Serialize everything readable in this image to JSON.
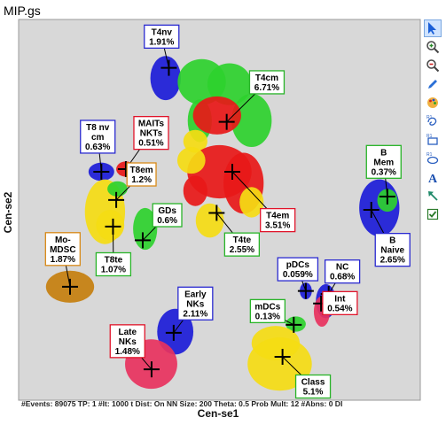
{
  "window": {
    "title": "MIP.gs"
  },
  "toolbar": {
    "items": [
      {
        "name": "pointer-tool-icon",
        "active": true
      },
      {
        "name": "zoom-in-icon",
        "active": false
      },
      {
        "name": "zoom-out-icon",
        "active": false
      },
      {
        "name": "pen-tool-icon",
        "active": false
      },
      {
        "name": "palette-icon",
        "active": false
      },
      {
        "name": "freehand-region-icon",
        "active": false
      },
      {
        "name": "rectangle-region-icon",
        "active": false
      },
      {
        "name": "ellipse-region-icon",
        "active": false
      },
      {
        "name": "text-tool-icon",
        "active": false
      },
      {
        "name": "arrow-tool-icon",
        "active": false
      },
      {
        "name": "checkbox-icon",
        "active": false
      }
    ]
  },
  "colors": {
    "blue": "#1c1cd8",
    "green": "#2ed12e",
    "red": "#e81818",
    "yellow": "#f5dc14",
    "orange": "#c57f0e",
    "pink": "#e8325e",
    "plot_bg": "#d8d8d8",
    "edge_blue": "#2a2ad0",
    "edge_red": "#e0142a",
    "edge_green": "#28b428",
    "edge_orange": "#d88a18"
  },
  "chart_data": {
    "type": "scatter",
    "xlabel": "Cen-se1",
    "ylabel": "Cen-se2",
    "status": "#Events: 89075 TP: 1 #It: 1000 t Dist: On NN Size: 200 Theta: 0.5 Prob Mult: 12 #Abns: 0 DI",
    "grid": false,
    "clusters": [
      {
        "id": "t4nv",
        "label": [
          "T4nv",
          "1.91%"
        ],
        "x": 0.374,
        "y": 0.873,
        "color": "blue",
        "edge": "edge_blue",
        "lx": 0.356,
        "ly": 0.955,
        "blobs": [
          {
            "x": 0.366,
            "y": 0.846,
            "rx": 0.038,
            "ry": 0.058,
            "c": "blue"
          }
        ]
      },
      {
        "id": "t4cm",
        "label": [
          "T4cm",
          "6.71%"
        ],
        "x": 0.518,
        "y": 0.731,
        "color": "green",
        "edge": "edge_green",
        "lx": 0.618,
        "ly": 0.835,
        "blobs": [
          {
            "x": 0.456,
            "y": 0.836,
            "rx": 0.06,
            "ry": 0.06,
            "c": "green"
          },
          {
            "x": 0.525,
            "y": 0.83,
            "rx": 0.055,
            "ry": 0.055,
            "c": "green"
          },
          {
            "x": 0.451,
            "y": 0.734,
            "rx": 0.03,
            "ry": 0.056,
            "c": "green"
          },
          {
            "x": 0.58,
            "y": 0.735,
            "rx": 0.05,
            "ry": 0.07,
            "c": "green"
          },
          {
            "x": 0.494,
            "y": 0.748,
            "rx": 0.06,
            "ry": 0.05,
            "c": "red"
          },
          {
            "x": 0.44,
            "y": 0.68,
            "rx": 0.03,
            "ry": 0.03,
            "c": "yellow"
          }
        ]
      },
      {
        "id": "t8nvcm",
        "label": [
          "T8 nv",
          "cm",
          "0.63%"
        ],
        "x": 0.206,
        "y": 0.6,
        "color": "blue",
        "edge": "edge_blue",
        "lx": 0.197,
        "ly": 0.692,
        "blobs": [
          {
            "x": 0.206,
            "y": 0.6,
            "rx": 0.032,
            "ry": 0.024,
            "c": "blue"
          }
        ]
      },
      {
        "id": "maits",
        "label": [
          "MAITs",
          "NKTs",
          "0.51%"
        ],
        "x": 0.267,
        "y": 0.607,
        "color": "red",
        "edge": "edge_red",
        "lx": 0.33,
        "ly": 0.702,
        "blobs": [
          {
            "x": 0.267,
            "y": 0.607,
            "rx": 0.024,
            "ry": 0.02,
            "c": "red"
          }
        ]
      },
      {
        "id": "t8em",
        "label": [
          "T8em",
          "1.2%"
        ],
        "x": 0.243,
        "y": 0.526,
        "color": "yellow",
        "edge": "edge_orange",
        "lx": 0.306,
        "ly": 0.593,
        "blobs": [
          {
            "x": 0.215,
            "y": 0.495,
            "rx": 0.05,
            "ry": 0.085,
            "c": "yellow"
          },
          {
            "x": 0.246,
            "y": 0.555,
            "rx": 0.025,
            "ry": 0.02,
            "c": "green"
          }
        ]
      },
      {
        "id": "t8te",
        "label": [
          "T8te",
          "1.07%"
        ],
        "x": 0.235,
        "y": 0.456,
        "color": "yellow",
        "edge": "edge_green",
        "lx": 0.236,
        "ly": 0.357,
        "blobs": [
          {
            "x": 0.228,
            "y": 0.46,
            "rx": 0.035,
            "ry": 0.04,
            "c": "yellow"
          }
        ]
      },
      {
        "id": "gds",
        "label": [
          "GDs",
          "0.6%"
        ],
        "x": 0.309,
        "y": 0.42,
        "color": "green",
        "edge": "edge_green",
        "lx": 0.37,
        "ly": 0.486,
        "blobs": [
          {
            "x": 0.315,
            "y": 0.45,
            "rx": 0.03,
            "ry": 0.055,
            "c": "green"
          }
        ]
      },
      {
        "id": "t4em",
        "label": [
          "T4em",
          "3.51%"
        ],
        "x": 0.532,
        "y": 0.6,
        "color": "red",
        "edge": "edge_red",
        "lx": 0.645,
        "ly": 0.473,
        "blobs": [
          {
            "x": 0.5,
            "y": 0.6,
            "rx": 0.08,
            "ry": 0.07,
            "c": "red"
          },
          {
            "x": 0.56,
            "y": 0.57,
            "rx": 0.05,
            "ry": 0.08,
            "c": "red"
          },
          {
            "x": 0.44,
            "y": 0.55,
            "rx": 0.03,
            "ry": 0.04,
            "c": "red"
          },
          {
            "x": 0.43,
            "y": 0.63,
            "rx": 0.035,
            "ry": 0.035,
            "c": "yellow"
          },
          {
            "x": 0.58,
            "y": 0.52,
            "rx": 0.03,
            "ry": 0.04,
            "c": "yellow"
          }
        ]
      },
      {
        "id": "t4te",
        "label": [
          "T4te",
          "2.55%"
        ],
        "x": 0.493,
        "y": 0.492,
        "color": "yellow",
        "edge": "edge_green",
        "lx": 0.556,
        "ly": 0.409,
        "blobs": [
          {
            "x": 0.476,
            "y": 0.472,
            "rx": 0.035,
            "ry": 0.045,
            "c": "yellow"
          }
        ]
      },
      {
        "id": "bmem",
        "label": [
          "B",
          "Mem",
          "0.37%"
        ],
        "x": 0.918,
        "y": 0.535,
        "color": "blue",
        "edge": "edge_green",
        "lx": 0.909,
        "ly": 0.626,
        "blobs": [
          {
            "x": 0.898,
            "y": 0.505,
            "rx": 0.05,
            "ry": 0.075,
            "c": "blue"
          }
        ]
      },
      {
        "id": "bnaive",
        "label": [
          "B",
          "Naive",
          "2.65%"
        ],
        "x": 0.878,
        "y": 0.5,
        "color": "blue",
        "edge": "edge_blue",
        "lx": 0.931,
        "ly": 0.395,
        "blobs": [
          {
            "x": 0.918,
            "y": 0.525,
            "rx": 0.025,
            "ry": 0.03,
            "c": "green"
          }
        ]
      },
      {
        "id": "momdsc",
        "label": [
          "Mo-",
          "MDSC",
          "1.87%"
        ],
        "x": 0.128,
        "y": 0.298,
        "color": "orange",
        "edge": "edge_orange",
        "lx": 0.11,
        "ly": 0.397,
        "blobs": [
          {
            "x": 0.128,
            "y": 0.298,
            "rx": 0.06,
            "ry": 0.042,
            "c": "orange"
          }
        ]
      },
      {
        "id": "pdcs",
        "label": [
          "pDCs",
          "0.059%"
        ],
        "x": 0.715,
        "y": 0.287,
        "color": "blue",
        "edge": "edge_blue",
        "lx": 0.695,
        "ly": 0.344,
        "blobs": [
          {
            "x": 0.715,
            "y": 0.287,
            "rx": 0.015,
            "ry": 0.022,
            "c": "blue"
          }
        ]
      },
      {
        "id": "nc",
        "label": [
          "NC",
          "0.68%"
        ],
        "x": 0.772,
        "y": 0.279,
        "color": "blue",
        "edge": "edge_blue",
        "lx": 0.806,
        "ly": 0.338,
        "blobs": [
          {
            "x": 0.765,
            "y": 0.26,
            "rx": 0.025,
            "ry": 0.045,
            "c": "blue"
          }
        ]
      },
      {
        "id": "int",
        "label": [
          "Int",
          "0.54%"
        ],
        "x": 0.753,
        "y": 0.254,
        "color": "pink",
        "edge": "edge_red",
        "lx": 0.8,
        "ly": 0.255,
        "blobs": [
          {
            "x": 0.755,
            "y": 0.233,
            "rx": 0.02,
            "ry": 0.04,
            "c": "pink"
          }
        ]
      },
      {
        "id": "mdcs",
        "label": [
          "mDCs",
          "0.13%"
        ],
        "x": 0.685,
        "y": 0.198,
        "color": "green",
        "edge": "edge_green",
        "lx": 0.62,
        "ly": 0.234,
        "blobs": [
          {
            "x": 0.69,
            "y": 0.2,
            "rx": 0.025,
            "ry": 0.02,
            "c": "green"
          }
        ]
      },
      {
        "id": "class",
        "label": [
          "Class",
          "5.1%"
        ],
        "x": 0.657,
        "y": 0.114,
        "color": "yellow",
        "edge": "edge_green",
        "lx": 0.733,
        "ly": 0.036,
        "blobs": [
          {
            "x": 0.65,
            "y": 0.095,
            "rx": 0.08,
            "ry": 0.07,
            "c": "yellow"
          },
          {
            "x": 0.64,
            "y": 0.15,
            "rx": 0.06,
            "ry": 0.045,
            "c": "yellow"
          }
        ]
      },
      {
        "id": "earlynk",
        "label": [
          "Early",
          "NKs",
          "2.11%"
        ],
        "x": 0.386,
        "y": 0.177,
        "color": "blue",
        "edge": "edge_blue",
        "lx": 0.44,
        "ly": 0.254,
        "blobs": [
          {
            "x": 0.39,
            "y": 0.18,
            "rx": 0.045,
            "ry": 0.06,
            "c": "blue"
          }
        ]
      },
      {
        "id": "latenk",
        "label": [
          "Late",
          "NKs",
          "1.48%"
        ],
        "x": 0.331,
        "y": 0.081,
        "color": "pink",
        "edge": "edge_red",
        "lx": 0.271,
        "ly": 0.155,
        "blobs": [
          {
            "x": 0.33,
            "y": 0.095,
            "rx": 0.065,
            "ry": 0.065,
            "c": "pink"
          }
        ]
      }
    ]
  }
}
